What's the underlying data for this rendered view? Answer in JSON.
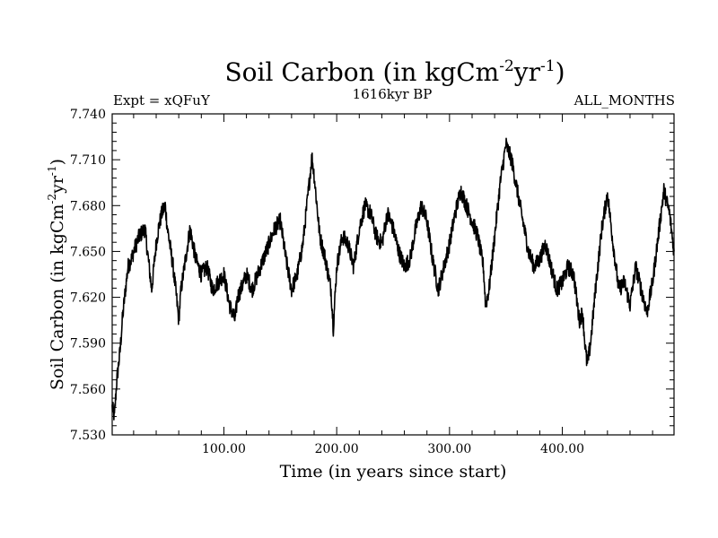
{
  "chart_data": {
    "type": "line",
    "title": "Soil Carbon (in kgCm",
    "title_sup1": "-2",
    "title_mid": "yr",
    "title_sup2": "-1",
    "title_end": ")",
    "left_label": "Expt = xQFuY",
    "center_label": "1616kyr BP",
    "right_label": "ALL_MONTHS",
    "xlabel": "Time (in years since start)",
    "ylabel_base": "Soil Carbon (in kgCm",
    "ylabel_sup1": "-2",
    "ylabel_mid": "yr",
    "ylabel_sup2": "-1",
    "ylabel_end": ")",
    "xlim": [
      1,
      499
    ],
    "ylim": [
      7.53,
      7.74
    ],
    "xticks": [
      100,
      200,
      300,
      400
    ],
    "xtick_labels": [
      "100.00",
      "200.00",
      "300.00",
      "400.00"
    ],
    "yticks": [
      7.53,
      7.56,
      7.59,
      7.62,
      7.65,
      7.68,
      7.71,
      7.74
    ],
    "ytick_labels": [
      "7.530",
      "7.560",
      "7.590",
      "7.620",
      "7.650",
      "7.680",
      "7.710",
      "7.740"
    ],
    "series": [
      {
        "name": "Soil Carbon",
        "x": [
          1,
          3,
          5,
          8,
          10,
          12,
          15,
          18,
          20,
          25,
          30,
          33,
          36,
          40,
          42,
          45,
          48,
          50,
          55,
          58,
          60,
          62,
          65,
          68,
          70,
          75,
          80,
          85,
          90,
          95,
          100,
          105,
          110,
          112,
          115,
          120,
          125,
          130,
          135,
          140,
          145,
          150,
          155,
          160,
          165,
          170,
          175,
          178,
          180,
          185,
          190,
          195,
          197,
          200,
          205,
          210,
          215,
          220,
          225,
          230,
          235,
          240,
          245,
          250,
          255,
          260,
          265,
          270,
          275,
          280,
          285,
          290,
          295,
          300,
          305,
          310,
          315,
          320,
          325,
          330,
          332,
          335,
          340,
          345,
          350,
          355,
          360,
          365,
          370,
          375,
          380,
          385,
          390,
          395,
          400,
          405,
          410,
          415,
          418,
          420,
          422,
          425,
          430,
          435,
          440,
          445,
          450,
          455,
          460,
          465,
          470,
          475,
          480,
          485,
          490,
          495,
          499
        ],
        "y": [
          7.548,
          7.542,
          7.565,
          7.585,
          7.605,
          7.62,
          7.64,
          7.645,
          7.65,
          7.66,
          7.665,
          7.645,
          7.625,
          7.655,
          7.665,
          7.675,
          7.68,
          7.665,
          7.64,
          7.62,
          7.605,
          7.625,
          7.64,
          7.655,
          7.665,
          7.645,
          7.635,
          7.64,
          7.625,
          7.63,
          7.635,
          7.615,
          7.605,
          7.62,
          7.625,
          7.635,
          7.625,
          7.635,
          7.645,
          7.655,
          7.665,
          7.67,
          7.645,
          7.625,
          7.635,
          7.655,
          7.69,
          7.712,
          7.7,
          7.66,
          7.645,
          7.625,
          7.6,
          7.64,
          7.66,
          7.655,
          7.64,
          7.665,
          7.68,
          7.675,
          7.66,
          7.655,
          7.675,
          7.665,
          7.65,
          7.64,
          7.645,
          7.665,
          7.68,
          7.67,
          7.645,
          7.625,
          7.64,
          7.655,
          7.675,
          7.69,
          7.68,
          7.67,
          7.66,
          7.64,
          7.615,
          7.625,
          7.66,
          7.695,
          7.72,
          7.71,
          7.69,
          7.67,
          7.65,
          7.64,
          7.645,
          7.655,
          7.64,
          7.625,
          7.63,
          7.64,
          7.635,
          7.605,
          7.61,
          7.59,
          7.575,
          7.59,
          7.63,
          7.665,
          7.688,
          7.655,
          7.625,
          7.63,
          7.615,
          7.64,
          7.625,
          7.61,
          7.63,
          7.66,
          7.69,
          7.675,
          7.65
        ]
      }
    ]
  }
}
